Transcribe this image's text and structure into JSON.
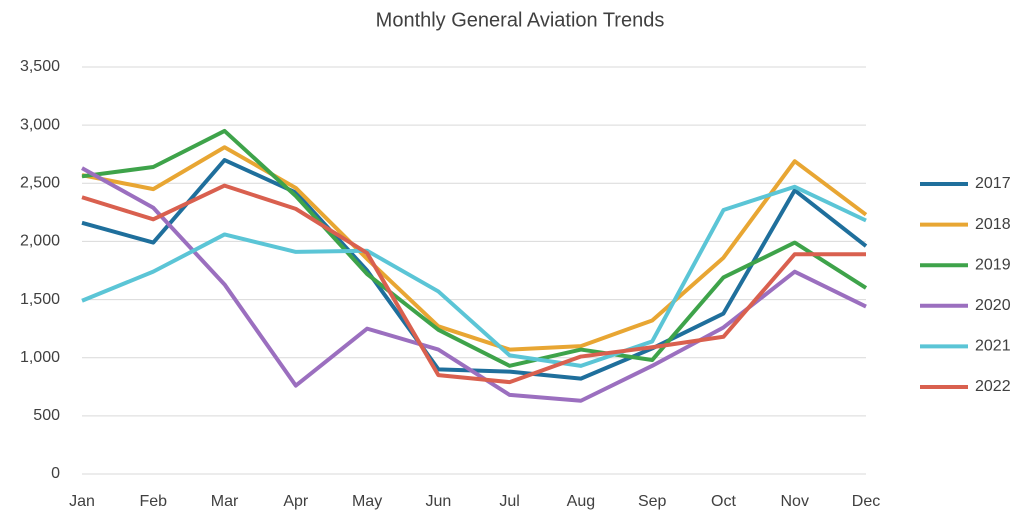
{
  "chart_data": {
    "type": "line",
    "title": "Monthly General Aviation Trends",
    "categories": [
      "Jan",
      "Feb",
      "Mar",
      "Apr",
      "May",
      "Jun",
      "Jul",
      "Aug",
      "Sep",
      "Oct",
      "Nov",
      "Dec"
    ],
    "series": [
      {
        "name": "2017",
        "color": "#1f6f9c",
        "values": [
          2160,
          1990,
          2700,
          2420,
          1750,
          900,
          880,
          820,
          1080,
          1380,
          2440,
          1960
        ]
      },
      {
        "name": "2018",
        "color": "#e8a633",
        "values": [
          2570,
          2450,
          2810,
          2460,
          1850,
          1270,
          1070,
          1100,
          1320,
          1860,
          2690,
          2230
        ]
      },
      {
        "name": "2019",
        "color": "#3ea34a",
        "values": [
          2560,
          2640,
          2950,
          2390,
          1720,
          1240,
          930,
          1070,
          980,
          1690,
          1990,
          1600
        ]
      },
      {
        "name": "2020",
        "color": "#9b6fbf",
        "values": [
          2630,
          2290,
          1630,
          760,
          1250,
          1070,
          680,
          630,
          930,
          1260,
          1740,
          1440
        ]
      },
      {
        "name": "2021",
        "color": "#5bc5d6",
        "values": [
          1490,
          1740,
          2060,
          1910,
          1920,
          1570,
          1020,
          930,
          1140,
          2270,
          2470,
          2180
        ]
      },
      {
        "name": "2022",
        "color": "#d9604f",
        "values": [
          2380,
          2190,
          2480,
          2280,
          1900,
          850,
          790,
          1010,
          1090,
          1180,
          1890,
          1890
        ]
      }
    ],
    "ylim": [
      0,
      3500
    ],
    "yticks": [
      0,
      500,
      {
        "value": 1000,
        "label": "1,000"
      },
      {
        "value": 1500,
        "label": "1,500"
      },
      {
        "value": 2000,
        "label": "2,000"
      },
      {
        "value": 2500,
        "label": "2,500"
      },
      {
        "value": 3000,
        "label": "3,000"
      },
      {
        "value": 3500,
        "label": "3,500"
      }
    ],
    "grid": true,
    "legend": "right"
  }
}
